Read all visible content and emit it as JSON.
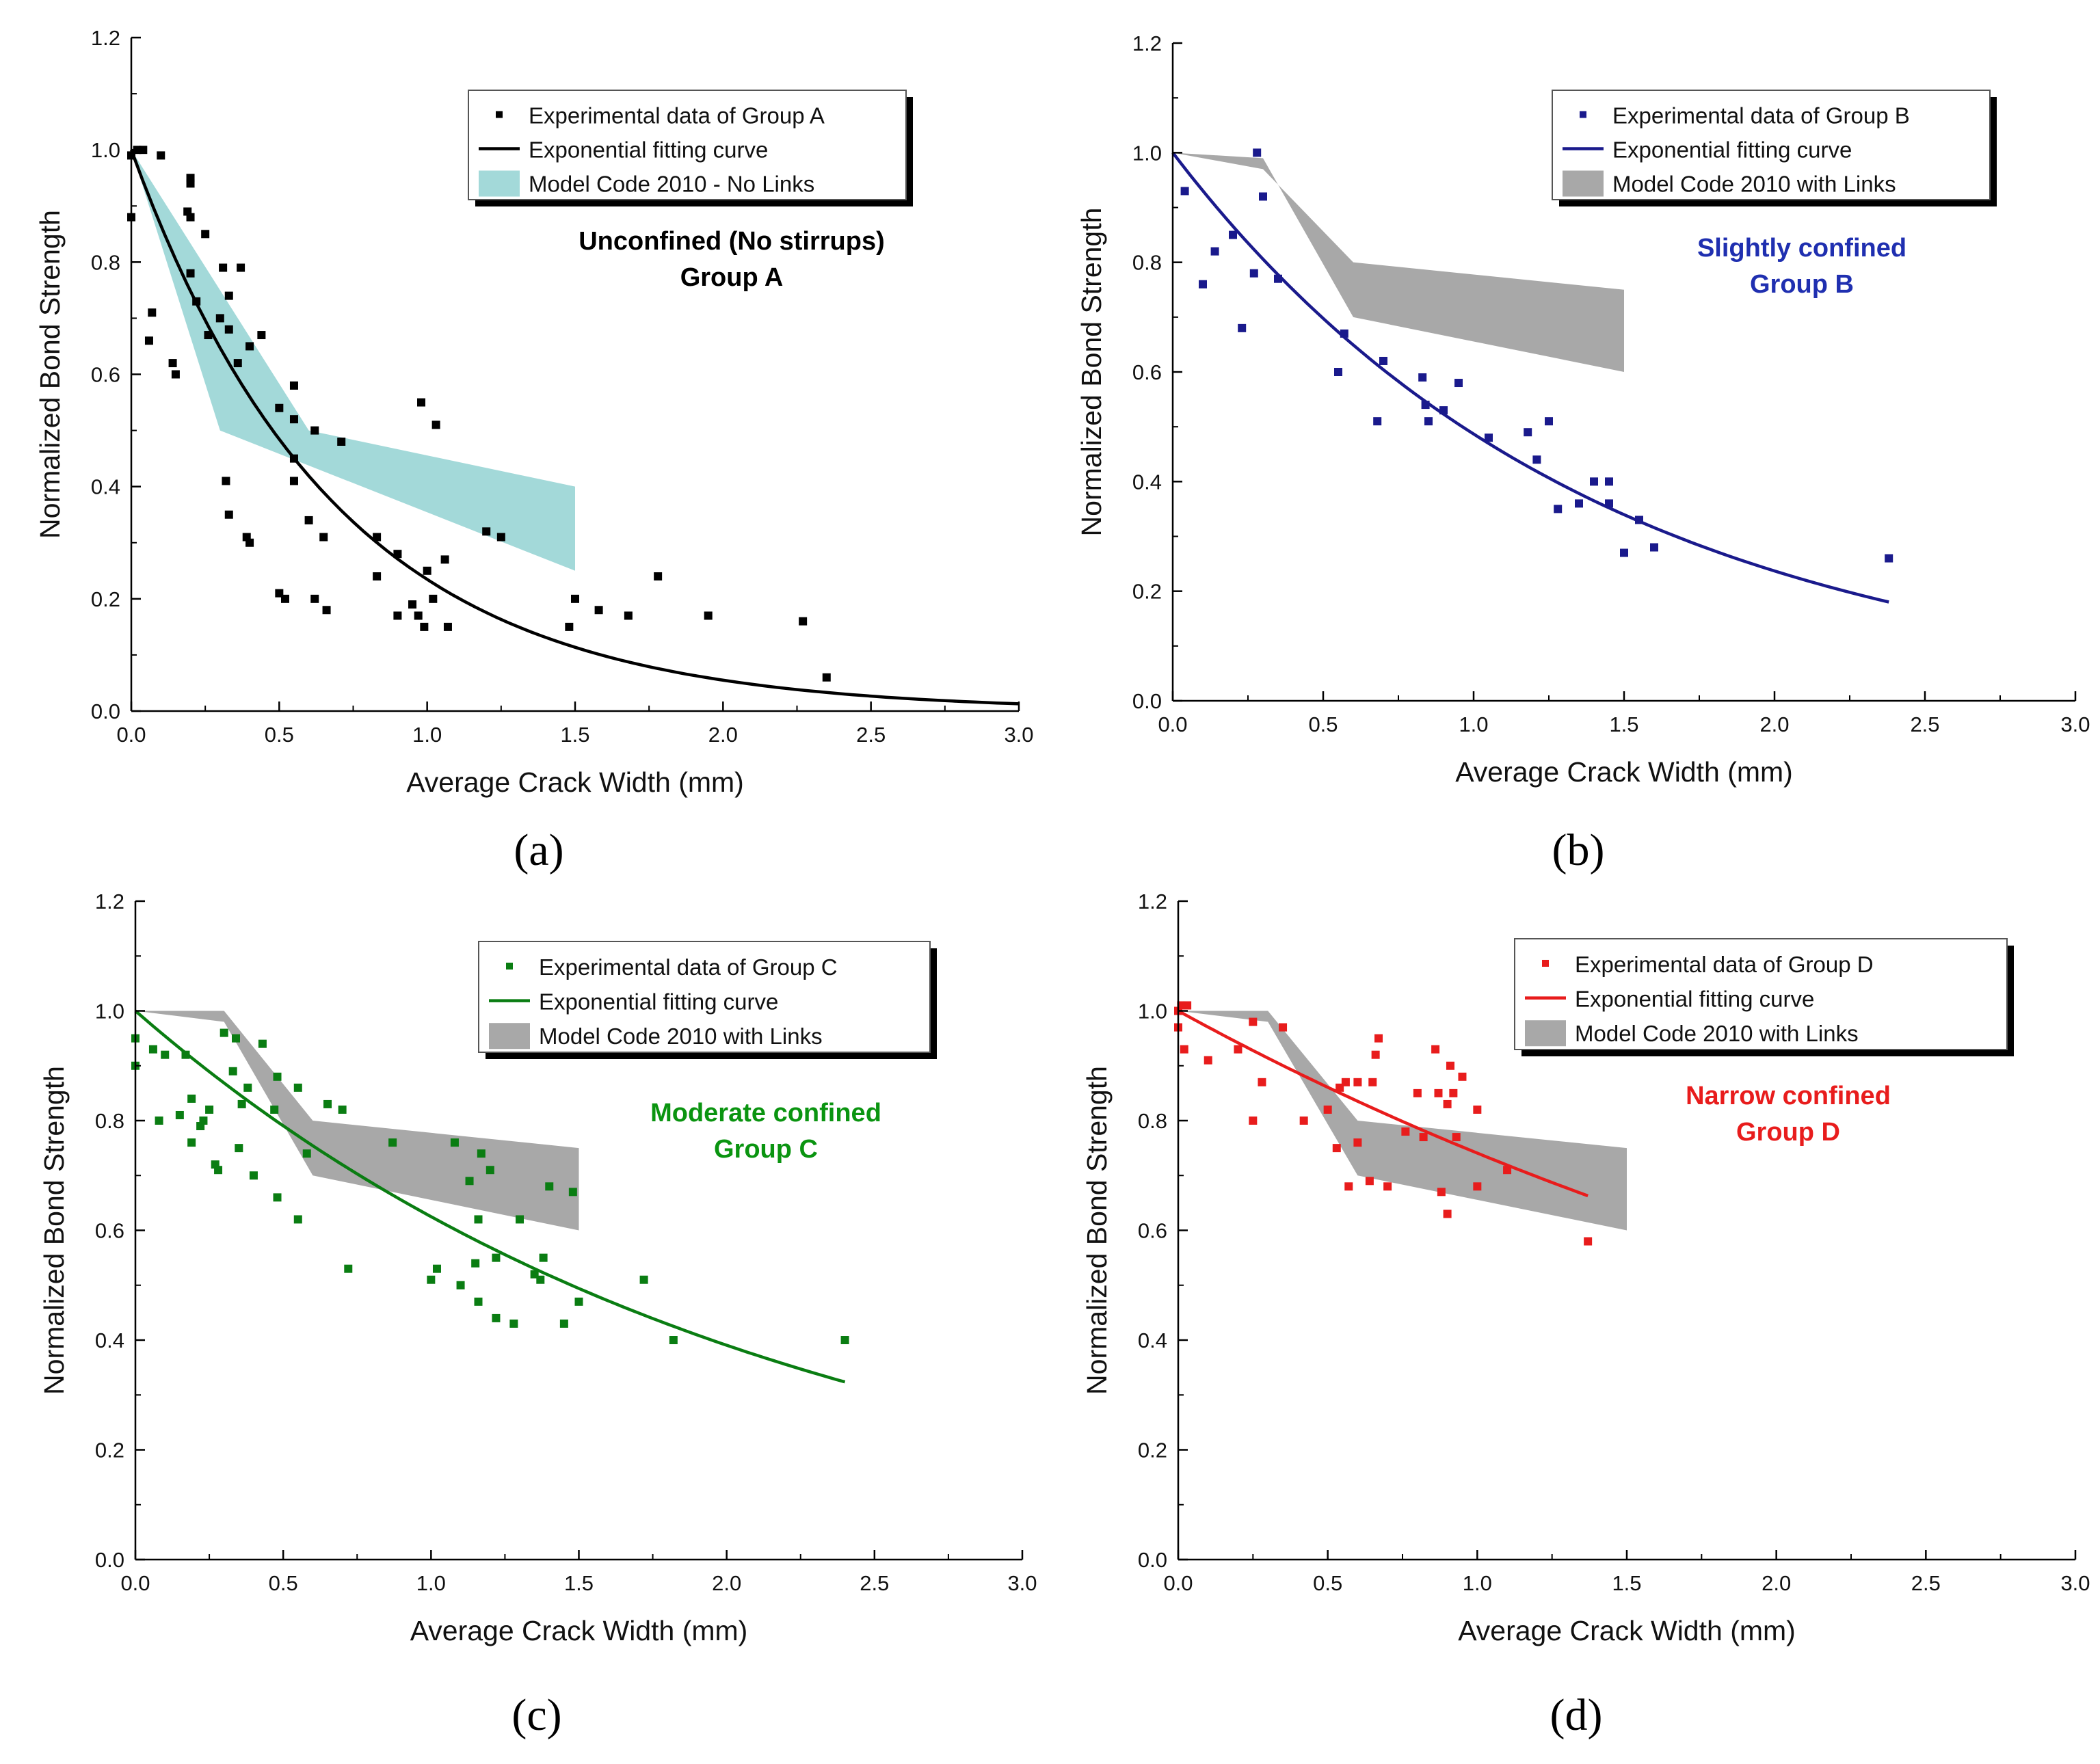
{
  "x_label": "Average Crack Width (mm)",
  "y_label": "Normalized Bond Strength",
  "chart_data": [
    {
      "panel": "(a)",
      "type": "scatter",
      "color": "#000000",
      "band_color": "#a3d9d9",
      "xlim": [
        0,
        3.0
      ],
      "ylim": [
        0,
        1.2
      ],
      "xticks": [
        "0.0",
        "0.5",
        "1.0",
        "1.5",
        "2.0",
        "2.5",
        "3.0"
      ],
      "yticks": [
        "0.0",
        "0.2",
        "0.4",
        "0.6",
        "0.8",
        "1.0",
        "1.2"
      ],
      "legend": [
        "Experimental data of Group A",
        "Exponential fitting curve",
        "Model Code 2010 - No Links"
      ],
      "annotation": [
        "Unconfined (No stirrups)",
        "Group A"
      ],
      "annotation_color": "#000000",
      "x_curve_end": 3.0,
      "fit": {
        "a": 1.0,
        "b": 1.45
      },
      "band_upper": [
        [
          0,
          1.0
        ],
        [
          0.6,
          0.5
        ],
        [
          1.5,
          0.4
        ]
      ],
      "band_lower": [
        [
          0,
          1.0
        ],
        [
          0.3,
          0.5
        ],
        [
          1.5,
          0.25
        ]
      ],
      "points": [
        [
          0.0,
          0.88
        ],
        [
          0.0,
          0.99
        ],
        [
          0.02,
          1.0
        ],
        [
          0.04,
          1.0
        ],
        [
          0.06,
          0.66
        ],
        [
          0.07,
          0.71
        ],
        [
          0.1,
          0.99
        ],
        [
          0.14,
          0.62
        ],
        [
          0.15,
          0.6
        ],
        [
          0.19,
          0.89
        ],
        [
          0.2,
          0.88
        ],
        [
          0.2,
          0.94
        ],
        [
          0.2,
          0.95
        ],
        [
          0.2,
          0.78
        ],
        [
          0.22,
          0.73
        ],
        [
          0.25,
          0.85
        ],
        [
          0.26,
          0.67
        ],
        [
          0.3,
          0.7
        ],
        [
          0.31,
          0.79
        ],
        [
          0.33,
          0.74
        ],
        [
          0.33,
          0.68
        ],
        [
          0.32,
          0.41
        ],
        [
          0.33,
          0.35
        ],
        [
          0.36,
          0.62
        ],
        [
          0.37,
          0.79
        ],
        [
          0.39,
          0.31
        ],
        [
          0.4,
          0.3
        ],
        [
          0.4,
          0.65
        ],
        [
          0.44,
          0.67
        ],
        [
          0.5,
          0.54
        ],
        [
          0.5,
          0.21
        ],
        [
          0.52,
          0.2
        ],
        [
          0.55,
          0.45
        ],
        [
          0.55,
          0.52
        ],
        [
          0.55,
          0.58
        ],
        [
          0.55,
          0.41
        ],
        [
          0.6,
          0.34
        ],
        [
          0.62,
          0.5
        ],
        [
          0.62,
          0.2
        ],
        [
          0.65,
          0.31
        ],
        [
          0.66,
          0.18
        ],
        [
          0.71,
          0.48
        ],
        [
          0.83,
          0.31
        ],
        [
          0.83,
          0.24
        ],
        [
          0.9,
          0.28
        ],
        [
          0.9,
          0.17
        ],
        [
          0.95,
          0.19
        ],
        [
          0.97,
          0.17
        ],
        [
          0.98,
          0.55
        ],
        [
          0.99,
          0.15
        ],
        [
          1.0,
          0.25
        ],
        [
          1.02,
          0.2
        ],
        [
          1.03,
          0.51
        ],
        [
          1.06,
          0.27
        ],
        [
          1.07,
          0.15
        ],
        [
          1.2,
          0.32
        ],
        [
          1.25,
          0.31
        ],
        [
          1.48,
          0.15
        ],
        [
          1.5,
          0.2
        ],
        [
          1.58,
          0.18
        ],
        [
          1.68,
          0.17
        ],
        [
          1.78,
          0.24
        ],
        [
          1.95,
          0.17
        ],
        [
          2.27,
          0.16
        ],
        [
          2.35,
          0.06
        ]
      ]
    },
    {
      "panel": "(b)",
      "type": "scatter",
      "color": "#1a1a8c",
      "band_color": "#a8a8a8",
      "xlim": [
        0,
        3.0
      ],
      "ylim": [
        0,
        1.2
      ],
      "xticks": [
        "0.0",
        "0.5",
        "1.0",
        "1.5",
        "2.0",
        "2.5",
        "3.0"
      ],
      "yticks": [
        "0.0",
        "0.2",
        "0.4",
        "0.6",
        "0.8",
        "1.0",
        "1.2"
      ],
      "legend": [
        "Experimental data of Group B",
        "Exponential fitting curve",
        "Model Code 2010 with Links"
      ],
      "annotation": [
        "Slightly confined",
        "Group B"
      ],
      "annotation_color": "#1f2fb0",
      "x_curve_end": 2.38,
      "fit": {
        "a": 1.0,
        "b": 0.72
      },
      "band_upper": [
        [
          0,
          1.0
        ],
        [
          0.3,
          0.97
        ],
        [
          0.6,
          0.8
        ],
        [
          1.5,
          0.75
        ]
      ],
      "band_lower": [
        [
          0,
          1.0
        ],
        [
          0.3,
          0.99
        ],
        [
          0.6,
          0.7
        ],
        [
          1.5,
          0.6
        ]
      ],
      "points": [
        [
          0.04,
          0.93
        ],
        [
          0.1,
          0.76
        ],
        [
          0.14,
          0.82
        ],
        [
          0.2,
          0.85
        ],
        [
          0.23,
          0.68
        ],
        [
          0.27,
          0.78
        ],
        [
          0.28,
          1.0
        ],
        [
          0.3,
          0.92
        ],
        [
          0.35,
          0.77
        ],
        [
          0.55,
          0.6
        ],
        [
          0.57,
          0.67
        ],
        [
          0.68,
          0.51
        ],
        [
          0.7,
          0.62
        ],
        [
          0.83,
          0.59
        ],
        [
          0.84,
          0.54
        ],
        [
          0.85,
          0.51
        ],
        [
          0.9,
          0.53
        ],
        [
          0.95,
          0.58
        ],
        [
          1.05,
          0.48
        ],
        [
          1.18,
          0.49
        ],
        [
          1.21,
          0.44
        ],
        [
          1.25,
          0.51
        ],
        [
          1.28,
          0.35
        ],
        [
          1.35,
          0.36
        ],
        [
          1.4,
          0.4
        ],
        [
          1.45,
          0.36
        ],
        [
          1.45,
          0.4
        ],
        [
          1.5,
          0.27
        ],
        [
          1.55,
          0.33
        ],
        [
          1.6,
          0.28
        ],
        [
          2.38,
          0.26
        ]
      ]
    },
    {
      "panel": "(c)",
      "type": "scatter",
      "color": "#0a7d12",
      "band_color": "#a8a8a8",
      "xlim": [
        0,
        3.0
      ],
      "ylim": [
        0,
        1.2
      ],
      "xticks": [
        "0.0",
        "0.5",
        "1.0",
        "1.5",
        "2.0",
        "2.5",
        "3.0"
      ],
      "yticks": [
        "0.0",
        "0.2",
        "0.4",
        "0.6",
        "0.8",
        "1.0",
        "1.2"
      ],
      "legend": [
        "Experimental data of Group C",
        "Exponential fitting curve",
        "Model Code 2010 with Links"
      ],
      "annotation": [
        "Moderate confined",
        "Group C"
      ],
      "annotation_color": "#0a9410",
      "x_curve_end": 2.4,
      "fit": {
        "a": 1.0,
        "b": 0.47
      },
      "band_upper": [
        [
          0,
          1.0
        ],
        [
          0.3,
          1.0
        ],
        [
          0.6,
          0.8
        ],
        [
          1.5,
          0.75
        ]
      ],
      "band_lower": [
        [
          0,
          1.0
        ],
        [
          0.3,
          0.98
        ],
        [
          0.6,
          0.7
        ],
        [
          1.5,
          0.6
        ]
      ],
      "points": [
        [
          0.0,
          0.95
        ],
        [
          0.0,
          0.9
        ],
        [
          0.06,
          0.93
        ],
        [
          0.08,
          0.8
        ],
        [
          0.1,
          0.92
        ],
        [
          0.15,
          0.81
        ],
        [
          0.17,
          0.92
        ],
        [
          0.19,
          0.84
        ],
        [
          0.19,
          0.76
        ],
        [
          0.22,
          0.79
        ],
        [
          0.23,
          0.8
        ],
        [
          0.25,
          0.82
        ],
        [
          0.27,
          0.72
        ],
        [
          0.28,
          0.71
        ],
        [
          0.3,
          0.96
        ],
        [
          0.33,
          0.89
        ],
        [
          0.34,
          0.95
        ],
        [
          0.35,
          0.75
        ],
        [
          0.36,
          0.83
        ],
        [
          0.38,
          0.86
        ],
        [
          0.4,
          0.7
        ],
        [
          0.43,
          0.94
        ],
        [
          0.47,
          0.82
        ],
        [
          0.48,
          0.88
        ],
        [
          0.48,
          0.66
        ],
        [
          0.55,
          0.62
        ],
        [
          0.55,
          0.86
        ],
        [
          0.58,
          0.74
        ],
        [
          0.65,
          0.83
        ],
        [
          0.7,
          0.82
        ],
        [
          0.72,
          0.53
        ],
        [
          0.87,
          0.76
        ],
        [
          1.0,
          0.51
        ],
        [
          1.02,
          0.53
        ],
        [
          1.08,
          0.76
        ],
        [
          1.1,
          0.5
        ],
        [
          1.13,
          0.69
        ],
        [
          1.15,
          0.54
        ],
        [
          1.16,
          0.47
        ],
        [
          1.16,
          0.62
        ],
        [
          1.17,
          0.74
        ],
        [
          1.2,
          0.71
        ],
        [
          1.22,
          0.55
        ],
        [
          1.22,
          0.44
        ],
        [
          1.28,
          0.43
        ],
        [
          1.3,
          0.62
        ],
        [
          1.35,
          0.52
        ],
        [
          1.37,
          0.51
        ],
        [
          1.38,
          0.55
        ],
        [
          1.4,
          0.68
        ],
        [
          1.45,
          0.43
        ],
        [
          1.48,
          0.67
        ],
        [
          1.5,
          0.47
        ],
        [
          1.72,
          0.51
        ],
        [
          1.82,
          0.4
        ],
        [
          2.4,
          0.4
        ]
      ]
    },
    {
      "panel": "(d)",
      "type": "scatter",
      "color": "#e81c1c",
      "band_color": "#a8a8a8",
      "xlim": [
        0,
        3.0
      ],
      "ylim": [
        0,
        1.2
      ],
      "xticks": [
        "0.0",
        "0.5",
        "1.0",
        "1.5",
        "2.0",
        "2.5",
        "3.0"
      ],
      "yticks": [
        "0.0",
        "0.2",
        "0.4",
        "0.6",
        "0.8",
        "1.0",
        "1.2"
      ],
      "legend": [
        "Experimental data of Group D",
        "Exponential fitting curve",
        "Model Code 2010 with Links"
      ],
      "annotation": [
        "Narrow confined",
        "Group D"
      ],
      "annotation_color": "#e81c1c",
      "x_curve_end": 1.37,
      "fit": {
        "a": 1.0,
        "b": 0.3
      },
      "band_upper": [
        [
          0,
          1.0
        ],
        [
          0.3,
          1.0
        ],
        [
          0.6,
          0.8
        ],
        [
          1.5,
          0.75
        ]
      ],
      "band_lower": [
        [
          0,
          1.0
        ],
        [
          0.3,
          0.98
        ],
        [
          0.6,
          0.7
        ],
        [
          1.5,
          0.6
        ]
      ],
      "points": [
        [
          0.0,
          0.97
        ],
        [
          0.0,
          1.0
        ],
        [
          0.01,
          1.01
        ],
        [
          0.02,
          0.93
        ],
        [
          0.03,
          1.01
        ],
        [
          0.1,
          0.91
        ],
        [
          0.2,
          0.93
        ],
        [
          0.25,
          0.8
        ],
        [
          0.25,
          0.98
        ],
        [
          0.28,
          0.87
        ],
        [
          0.35,
          0.97
        ],
        [
          0.42,
          0.8
        ],
        [
          0.5,
          0.82
        ],
        [
          0.53,
          0.75
        ],
        [
          0.54,
          0.86
        ],
        [
          0.56,
          0.87
        ],
        [
          0.57,
          0.68
        ],
        [
          0.6,
          0.87
        ],
        [
          0.6,
          0.76
        ],
        [
          0.64,
          0.69
        ],
        [
          0.65,
          0.87
        ],
        [
          0.66,
          0.92
        ],
        [
          0.67,
          0.95
        ],
        [
          0.7,
          0.68
        ],
        [
          0.76,
          0.78
        ],
        [
          0.8,
          0.85
        ],
        [
          0.82,
          0.77
        ],
        [
          0.86,
          0.93
        ],
        [
          0.87,
          0.85
        ],
        [
          0.88,
          0.67
        ],
        [
          0.9,
          0.63
        ],
        [
          0.9,
          0.83
        ],
        [
          0.91,
          0.9
        ],
        [
          0.92,
          0.85
        ],
        [
          0.93,
          0.77
        ],
        [
          0.95,
          0.88
        ],
        [
          1.0,
          0.82
        ],
        [
          1.0,
          0.68
        ],
        [
          1.1,
          0.71
        ],
        [
          1.37,
          0.58
        ]
      ]
    }
  ]
}
